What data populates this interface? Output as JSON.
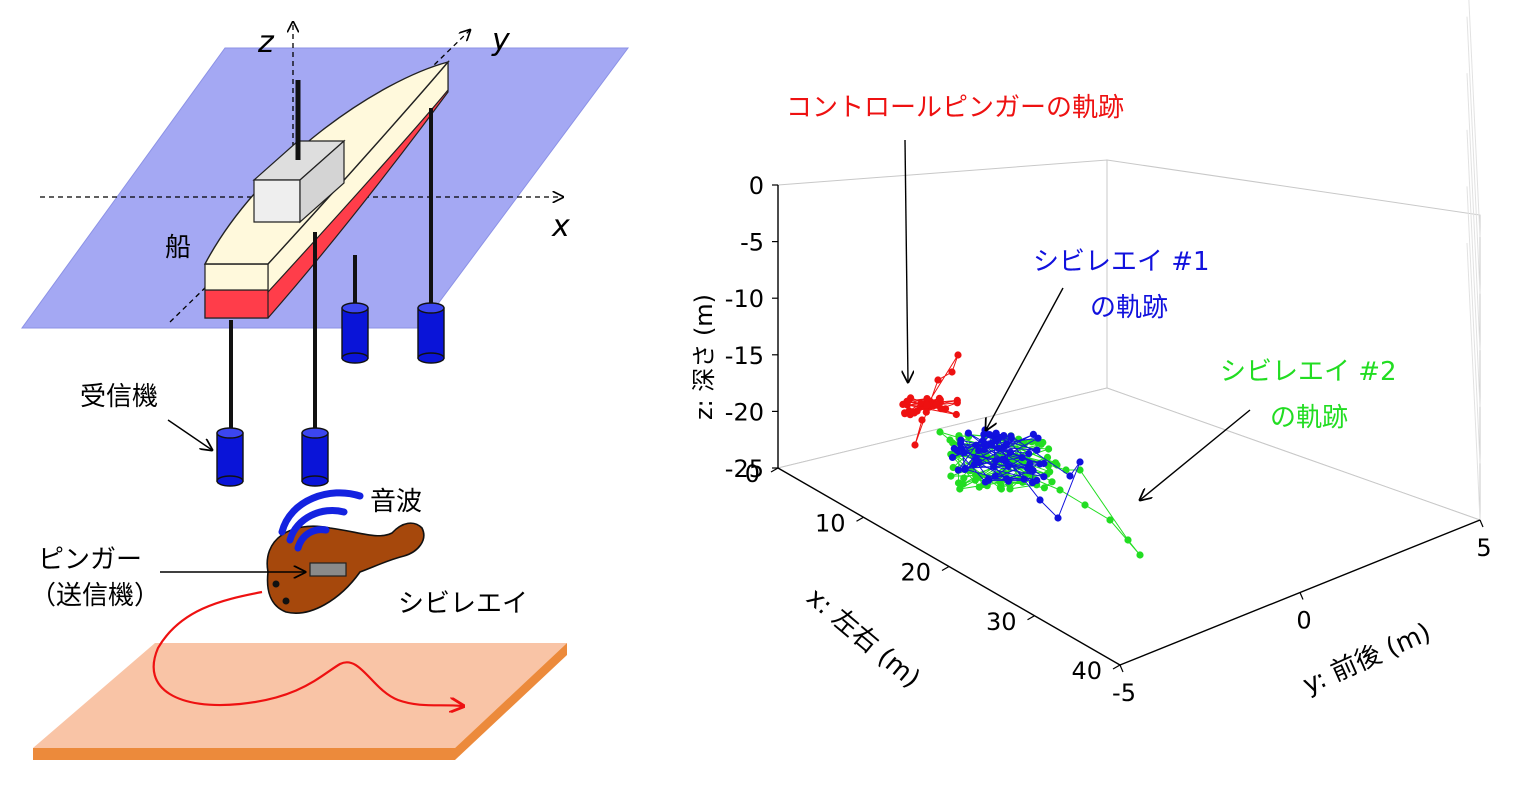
{
  "diagram": {
    "axis_labels": {
      "z": "z",
      "y": "y",
      "x": "x"
    },
    "ship_label": "船",
    "receiver_label": "受信機",
    "soundwave_label": "音波",
    "pinger_label": "ピンガー",
    "transmitter_label": "（送信機）",
    "ray_label": "シビレエイ"
  },
  "chart_data": {
    "type": "scatter",
    "title": "",
    "xlabel": "x: 左右 (m)",
    "ylabel": "y: 前後 (m)",
    "zlabel": "z: 深さ (m)",
    "xlim": [
      0,
      40
    ],
    "ylim": [
      -5,
      5
    ],
    "zlim": [
      -25,
      0
    ],
    "x_ticks": [
      "0",
      "10",
      "20",
      "30",
      "40"
    ],
    "y_ticks": [
      "-5",
      "0",
      "5"
    ],
    "z_ticks": [
      "0",
      "-5",
      "-10",
      "-15",
      "-20",
      "-25"
    ],
    "grid": true,
    "annotations": {
      "control": "コントロールピンガーの軌跡",
      "ray1_line1": "シビレエイ #1",
      "ray1_line2": "の軌跡",
      "ray2_line1": "シビレエイ #2",
      "ray2_line2": "の軌跡"
    },
    "colors": {
      "control": "#ee1111",
      "ray1": "#1111dd",
      "ray2": "#22dd22"
    },
    "series": [
      {
        "key": "control",
        "color": "#ee1111",
        "approx_x_range": [
          0,
          8
        ],
        "approx_y_range": [
          -1,
          1
        ],
        "approx_z_range": [
          -22,
          -14
        ]
      },
      {
        "key": "ray1",
        "color": "#1111dd",
        "approx_x_range": [
          8,
          28
        ],
        "approx_y_range": [
          -3,
          3
        ],
        "approx_z_range": [
          -25,
          -20
        ]
      },
      {
        "key": "ray2",
        "color": "#22dd22",
        "approx_x_range": [
          8,
          38
        ],
        "approx_y_range": [
          -3,
          3
        ],
        "approx_z_range": [
          -25,
          -20
        ]
      }
    ]
  }
}
